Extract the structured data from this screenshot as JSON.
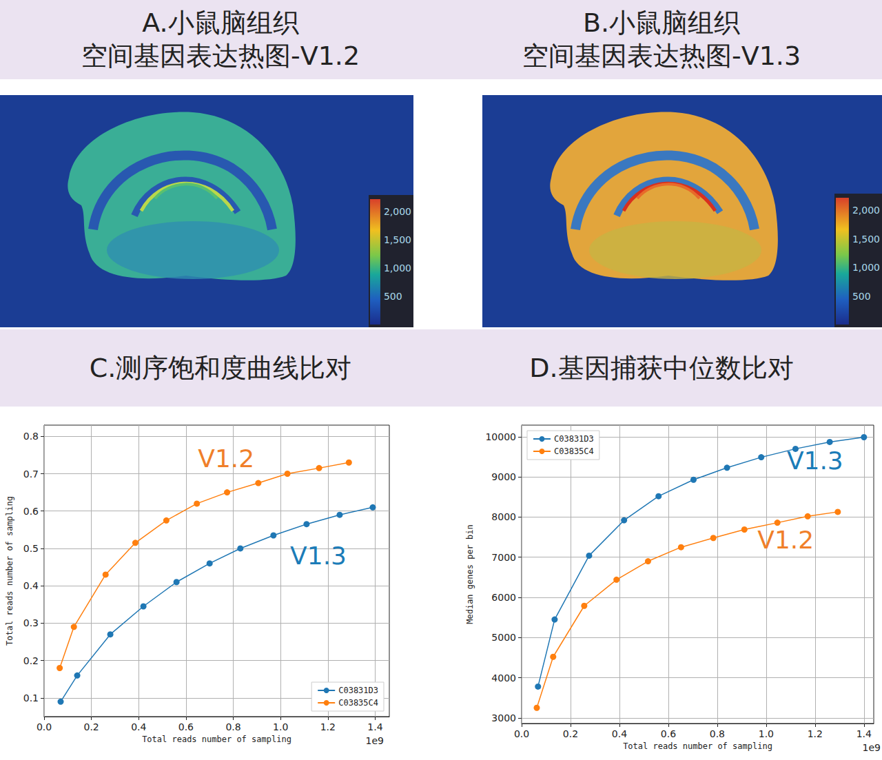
{
  "panels": [
    {
      "title_lines": [
        "A.小鼠脑组织",
        "空间基因表达热图-V1.2"
      ],
      "colorbar": {
        "lim": [
          0,
          2220
        ],
        "ticks": [
          500,
          1000,
          1500,
          2000
        ]
      }
    },
    {
      "title_lines": [
        "B.小鼠脑组织",
        "空间基因表达热图-V1.3"
      ],
      "colorbar": {
        "lim": [
          0,
          2220
        ],
        "ticks": [
          500,
          1000,
          1500,
          2000
        ]
      }
    }
  ],
  "chart_data": [
    {
      "type": "line",
      "title": "C.测序饱和度曲线比对",
      "x_label": "Total reads number of sampling",
      "y_label": "Total reads number of sampling",
      "x_offset_text": "1e9",
      "xlim": [
        0,
        1.46
      ],
      "xticks": [
        {
          "value": 0,
          "label": "0.0"
        },
        0.2,
        0.4,
        0.6,
        0.8,
        {
          "value": 1,
          "label": "1.0"
        },
        1.2,
        1.4
      ],
      "ylim": [
        0.05,
        0.83
      ],
      "yticks": [
        0.1,
        0.2,
        0.3,
        0.4,
        0.5,
        0.6,
        0.7,
        0.8
      ],
      "grid": true,
      "legend": "lower right",
      "marker": "o",
      "series": [
        {
          "name": "C03831D3",
          "color": "#1f77b4",
          "x": [
            0.07,
            0.14,
            0.28,
            0.42,
            0.56,
            0.7,
            0.83,
            0.97,
            1.11,
            1.25,
            1.39
          ],
          "values": [
            0.09,
            0.16,
            0.27,
            0.345,
            0.41,
            0.46,
            0.5,
            0.535,
            0.565,
            0.59,
            0.61
          ]
        },
        {
          "name": "C03835C4",
          "color": "#ff7f0e",
          "x": [
            0.066,
            0.126,
            0.26,
            0.386,
            0.517,
            0.646,
            0.774,
            0.906,
            1.029,
            1.163,
            1.289
          ],
          "values": [
            0.18,
            0.29,
            0.43,
            0.515,
            0.575,
            0.62,
            0.65,
            0.675,
            0.7,
            0.715,
            0.73
          ]
        }
      ],
      "annotations": [
        {
          "text": "V1.2",
          "x": 0.77,
          "y": 0.74,
          "color": "#f07f2a"
        },
        {
          "text": "V1.3",
          "x": 1.16,
          "y": 0.48,
          "color": "#1b7cb8"
        }
      ]
    },
    {
      "type": "line",
      "title": "D.基因捕获中位数比对",
      "x_label": "Total reads number of sampling",
      "y_label": "Median genes per bin",
      "x_offset_text": "1e9",
      "xlim": [
        0,
        1.44
      ],
      "xticks": [
        {
          "value": 0,
          "label": "0.0"
        },
        0.2,
        0.4,
        0.6,
        0.8,
        {
          "value": 1,
          "label": "1.0"
        },
        1.2,
        1.4
      ],
      "ylim": [
        2860,
        10290
      ],
      "yticks": [
        3000,
        4000,
        5000,
        6000,
        7000,
        8000,
        9000,
        10000
      ],
      "grid": true,
      "legend": "upper left",
      "marker": "o",
      "series": [
        {
          "name": "C03831D3",
          "color": "#1f77b4",
          "x": [
            0.067,
            0.135,
            0.276,
            0.419,
            0.56,
            0.703,
            0.84,
            0.98,
            1.12,
            1.26,
            1.4
          ],
          "values": [
            3780,
            5450,
            7040,
            7920,
            8520,
            8930,
            9230,
            9490,
            9700,
            9870,
            9990
          ]
        },
        {
          "name": "C03835C4",
          "color": "#ff7f0e",
          "x": [
            0.062,
            0.129,
            0.256,
            0.388,
            0.517,
            0.652,
            0.784,
            0.911,
            1.046,
            1.17,
            1.293
          ],
          "values": [
            3250,
            4520,
            5790,
            6440,
            6900,
            7250,
            7480,
            7690,
            7860,
            8020,
            8130
          ]
        }
      ],
      "annotations": [
        {
          "text": "V1.3",
          "x": 1.2,
          "y": 9400,
          "color": "#1b7cb8"
        },
        {
          "text": "V1.2",
          "x": 1.08,
          "y": 7440,
          "color": "#f07f2a"
        }
      ]
    }
  ]
}
